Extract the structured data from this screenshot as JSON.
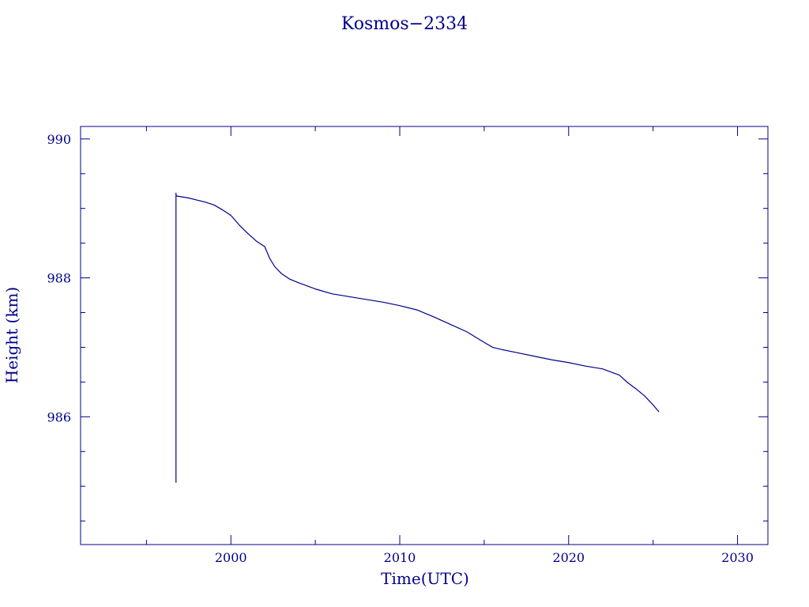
{
  "chart_data": {
    "type": "line",
    "title": "Kosmos−2334",
    "xlabel": "Time(UTC)",
    "ylabel": "Height (km)",
    "xlim": [
      1991.1,
      2031.8
    ],
    "ylim": [
      984.16,
      990.18
    ],
    "x_ticks": [
      2000,
      2010,
      2020,
      2030
    ],
    "x_minor_ticks": [
      1995,
      2005,
      2015,
      2025
    ],
    "y_ticks": [
      986,
      988,
      990
    ],
    "y_minor_ticks": [
      984.5,
      985,
      985.5,
      986.5,
      987,
      987.5,
      988.5,
      989,
      989.5
    ],
    "grid": false,
    "color": "#00008b",
    "series": [
      {
        "x": [
          1996.75,
          1996.75,
          1996.76,
          1997.0,
          1997.5,
          1998.0,
          1998.5,
          1999.0,
          1999.5,
          2000.0,
          2000.5,
          2001.0,
          2001.5,
          2002.0,
          2002.3,
          2002.6,
          2003.0,
          2003.5,
          2004.0,
          2005.0,
          2006.0,
          2007.0,
          2008.0,
          2009.0,
          2010.0,
          2011.0,
          2012.0,
          2013.0,
          2014.0,
          2015.0,
          2015.5,
          2016.0,
          2017.0,
          2018.0,
          2019.0,
          2020.0,
          2021.0,
          2022.0,
          2023.0,
          2023.5,
          2024.0,
          2024.5,
          2025.0,
          2025.35
        ],
        "y": [
          985.05,
          989.22,
          989.18,
          989.17,
          989.15,
          989.12,
          989.09,
          989.05,
          988.98,
          988.9,
          988.76,
          988.64,
          988.53,
          988.45,
          988.28,
          988.16,
          988.06,
          987.98,
          987.93,
          987.84,
          987.77,
          987.73,
          987.69,
          987.65,
          987.6,
          987.54,
          987.44,
          987.33,
          987.22,
          987.07,
          987.0,
          986.97,
          986.92,
          986.87,
          986.82,
          986.78,
          986.73,
          986.69,
          986.6,
          986.49,
          986.4,
          986.3,
          986.17,
          986.07
        ]
      }
    ]
  }
}
